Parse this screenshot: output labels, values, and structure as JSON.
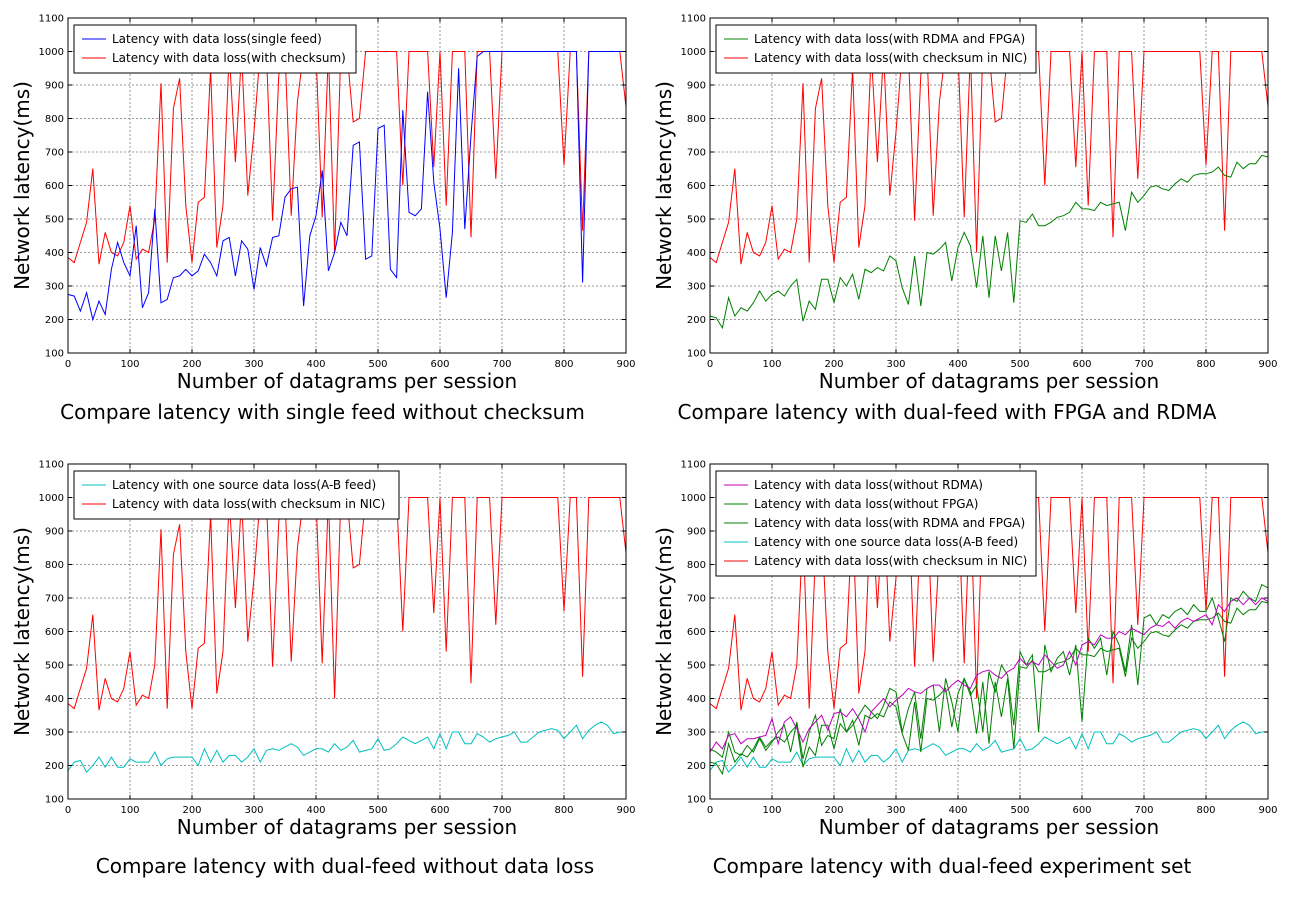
{
  "captions": [
    "Compare latency with single feed without checksum",
    "Compare latency with dual-feed with FPGA and RDMA",
    "Compare latency with dual-feed without data loss",
    "Compare latency with dual-feed experiment set"
  ],
  "chart_data": [
    {
      "type": "line",
      "xlabel": "Number of datagrams per session",
      "ylabel": "Network latency(ms)",
      "xlim": [
        0,
        900
      ],
      "ylim": [
        100,
        1100
      ],
      "xticks": [
        0,
        100,
        200,
        300,
        400,
        500,
        600,
        700,
        800,
        900
      ],
      "yticks": [
        100,
        200,
        300,
        400,
        500,
        600,
        700,
        800,
        900,
        1000,
        1100
      ],
      "grid": true,
      "legend": "top-left",
      "series": [
        {
          "name": "Latency with data loss(single feed)",
          "color": "#0000ff",
          "key": "single"
        },
        {
          "name": "Latency with data loss(with checksum)",
          "color": "#ff0000",
          "key": "checksum"
        }
      ]
    },
    {
      "type": "line",
      "xlabel": "Number of datagrams per session",
      "ylabel": "Network latency(ms)",
      "xlim": [
        0,
        900
      ],
      "ylim": [
        100,
        1100
      ],
      "xticks": [
        0,
        100,
        200,
        300,
        400,
        500,
        600,
        700,
        800,
        900
      ],
      "yticks": [
        100,
        200,
        300,
        400,
        500,
        600,
        700,
        800,
        900,
        1000,
        1100
      ],
      "grid": true,
      "legend": "top-left",
      "series": [
        {
          "name": "Latency with data loss(with RDMA and FPGA)",
          "color": "#008000",
          "key": "rdmafpga"
        },
        {
          "name": "Latency with data loss(with checksum in NIC)",
          "color": "#ff0000",
          "key": "checksum"
        }
      ]
    },
    {
      "type": "line",
      "xlabel": "Number of datagrams per session",
      "ylabel": "Network latency(ms)",
      "xlim": [
        0,
        900
      ],
      "ylim": [
        100,
        1100
      ],
      "xticks": [
        0,
        100,
        200,
        300,
        400,
        500,
        600,
        700,
        800,
        900
      ],
      "yticks": [
        100,
        200,
        300,
        400,
        500,
        600,
        700,
        800,
        900,
        1000,
        1100
      ],
      "grid": true,
      "legend": "top-left",
      "series": [
        {
          "name": "Latency with one source data loss(A-B feed)",
          "color": "#00bfbf",
          "key": "ab"
        },
        {
          "name": "Latency with data loss(with checksum in NIC)",
          "color": "#ff0000",
          "key": "checksum"
        }
      ]
    },
    {
      "type": "line",
      "xlabel": "Number of datagrams per session",
      "ylabel": "Network latency(ms)",
      "xlim": [
        0,
        900
      ],
      "ylim": [
        100,
        1100
      ],
      "xticks": [
        0,
        100,
        200,
        300,
        400,
        500,
        600,
        700,
        800,
        900
      ],
      "yticks": [
        100,
        200,
        300,
        400,
        500,
        600,
        700,
        800,
        900,
        1000,
        1100
      ],
      "grid": true,
      "legend": "top-left",
      "series": [
        {
          "name": "Latency with data loss(without RDMA)",
          "color": "#bf00bf",
          "key": "nordma"
        },
        {
          "name": "Latency with data loss(without FPGA)",
          "color": "#008000",
          "key": "nofpga"
        },
        {
          "name": "Latency with data loss(with RDMA and FPGA)",
          "color": "#008000",
          "key": "rdmafpga"
        },
        {
          "name": "Latency with one source data loss(A-B feed)",
          "color": "#00bfbf",
          "key": "ab"
        },
        {
          "name": "Latency with data loss(with checksum in NIC)",
          "color": "#ff0000",
          "key": "checksum"
        }
      ]
    }
  ],
  "series_values": {
    "x": [
      0,
      10,
      20,
      30,
      40,
      50,
      60,
      70,
      80,
      90,
      100,
      110,
      120,
      130,
      140,
      150,
      160,
      170,
      180,
      190,
      200,
      210,
      220,
      230,
      240,
      250,
      260,
      270,
      280,
      290,
      300,
      310,
      320,
      330,
      340,
      350,
      360,
      370,
      380,
      390,
      400,
      410,
      420,
      430,
      440,
      450,
      460,
      470,
      480,
      490,
      500,
      510,
      520,
      530,
      540,
      550,
      560,
      570,
      580,
      590,
      600,
      610,
      620,
      630,
      640,
      650,
      660,
      670,
      680,
      690,
      700,
      710,
      720,
      730,
      740,
      750,
      760,
      770,
      780,
      790,
      800,
      810,
      820,
      830,
      840,
      850,
      860,
      870,
      880,
      890,
      900
    ],
    "checksum": [
      385,
      370,
      430,
      490,
      650,
      365,
      460,
      400,
      390,
      430,
      540,
      380,
      410,
      400,
      500,
      905,
      370,
      830,
      920,
      540,
      370,
      550,
      565,
      950,
      415,
      540,
      1000,
      670,
      1000,
      570,
      760,
      1000,
      1000,
      495,
      930,
      1000,
      510,
      850,
      1000,
      1000,
      1000,
      505,
      1000,
      400,
      1000,
      1000,
      790,
      800,
      1000,
      1000,
      1000,
      1000,
      1000,
      1000,
      600,
      1000,
      1000,
      1000,
      1000,
      655,
      1000,
      540,
      1000,
      1000,
      1000,
      445,
      1000,
      1000,
      1000,
      620,
      1000,
      1000,
      1000,
      1000,
      1000,
      1000,
      1000,
      1000,
      1000,
      1000,
      660,
      1000,
      1000,
      465,
      1000,
      1000,
      1000,
      1000,
      1000,
      1000,
      835
    ],
    "single": [
      275,
      270,
      225,
      280,
      200,
      255,
      215,
      350,
      430,
      370,
      330,
      480,
      235,
      280,
      530,
      250,
      260,
      325,
      330,
      350,
      330,
      345,
      395,
      370,
      330,
      435,
      445,
      330,
      435,
      410,
      290,
      415,
      360,
      445,
      450,
      565,
      590,
      595,
      240,
      450,
      510,
      645,
      345,
      400,
      490,
      450,
      720,
      730,
      380,
      390,
      770,
      780,
      350,
      325,
      825,
      520,
      510,
      530,
      880,
      610,
      470,
      265,
      460,
      950,
      470,
      750,
      985,
      1000,
      1000,
      1000,
      1000,
      1000,
      1000,
      1000,
      1000,
      1000,
      1000,
      1000,
      1000,
      1000,
      1000,
      1000,
      1000,
      310,
      1000,
      1000,
      1000,
      1000,
      1000,
      1000,
      1000
    ],
    "rdmafpga": [
      210,
      205,
      175,
      265,
      210,
      235,
      225,
      250,
      285,
      255,
      275,
      285,
      270,
      300,
      320,
      195,
      255,
      230,
      320,
      320,
      250,
      325,
      300,
      335,
      260,
      350,
      340,
      355,
      345,
      390,
      375,
      295,
      245,
      390,
      240,
      400,
      395,
      410,
      430,
      315,
      415,
      460,
      420,
      295,
      450,
      265,
      450,
      345,
      460,
      250,
      495,
      490,
      515,
      480,
      480,
      490,
      505,
      510,
      520,
      550,
      530,
      530,
      525,
      550,
      540,
      545,
      550,
      465,
      580,
      550,
      570,
      595,
      600,
      590,
      585,
      605,
      620,
      610,
      630,
      635,
      635,
      640,
      655,
      630,
      625,
      670,
      650,
      665,
      665,
      690,
      685
    ],
    "ab": [
      185,
      210,
      215,
      180,
      200,
      225,
      195,
      225,
      195,
      195,
      220,
      210,
      210,
      210,
      240,
      200,
      220,
      225,
      225,
      225,
      225,
      200,
      250,
      210,
      245,
      210,
      230,
      230,
      210,
      225,
      250,
      210,
      245,
      250,
      245,
      255,
      265,
      255,
      230,
      240,
      250,
      250,
      240,
      265,
      245,
      255,
      275,
      240,
      245,
      250,
      280,
      245,
      250,
      265,
      285,
      275,
      265,
      275,
      285,
      250,
      295,
      250,
      300,
      300,
      265,
      265,
      295,
      285,
      270,
      280,
      285,
      290,
      300,
      270,
      270,
      285,
      300,
      305,
      310,
      305,
      280,
      300,
      320,
      280,
      305,
      320,
      330,
      320,
      295,
      300,
      300
    ],
    "nordma": [
      240,
      270,
      250,
      290,
      295,
      265,
      280,
      280,
      285,
      290,
      340,
      265,
      330,
      345,
      310,
      270,
      310,
      330,
      350,
      305,
      355,
      360,
      345,
      370,
      340,
      300,
      360,
      380,
      400,
      375,
      395,
      410,
      430,
      420,
      415,
      430,
      440,
      440,
      420,
      440,
      455,
      440,
      430,
      470,
      480,
      485,
      470,
      460,
      480,
      490,
      520,
      500,
      510,
      500,
      530,
      510,
      490,
      500,
      540,
      500,
      560,
      570,
      560,
      590,
      580,
      580,
      600,
      590,
      610,
      600,
      590,
      610,
      620,
      615,
      630,
      610,
      630,
      640,
      630,
      640,
      650,
      620,
      680,
      660,
      690,
      700,
      680,
      700,
      680,
      700,
      690
    ],
    "nofpga": [
      250,
      240,
      225,
      300,
      240,
      230,
      260,
      240,
      280,
      245,
      270,
      300,
      320,
      240,
      330,
      220,
      300,
      350,
      260,
      290,
      280,
      370,
      300,
      320,
      350,
      380,
      360,
      340,
      380,
      430,
      420,
      300,
      370,
      420,
      280,
      430,
      440,
      300,
      460,
      390,
      300,
      460,
      410,
      440,
      300,
      480,
      420,
      500,
      470,
      320,
      540,
      500,
      530,
      300,
      560,
      480,
      520,
      540,
      470,
      560,
      330,
      580,
      550,
      580,
      470,
      600,
      560,
      480,
      620,
      440,
      640,
      650,
      620,
      650,
      640,
      660,
      670,
      650,
      680,
      660,
      660,
      700,
      640,
      570,
      700,
      690,
      720,
      700,
      690,
      740,
      730
    ]
  }
}
